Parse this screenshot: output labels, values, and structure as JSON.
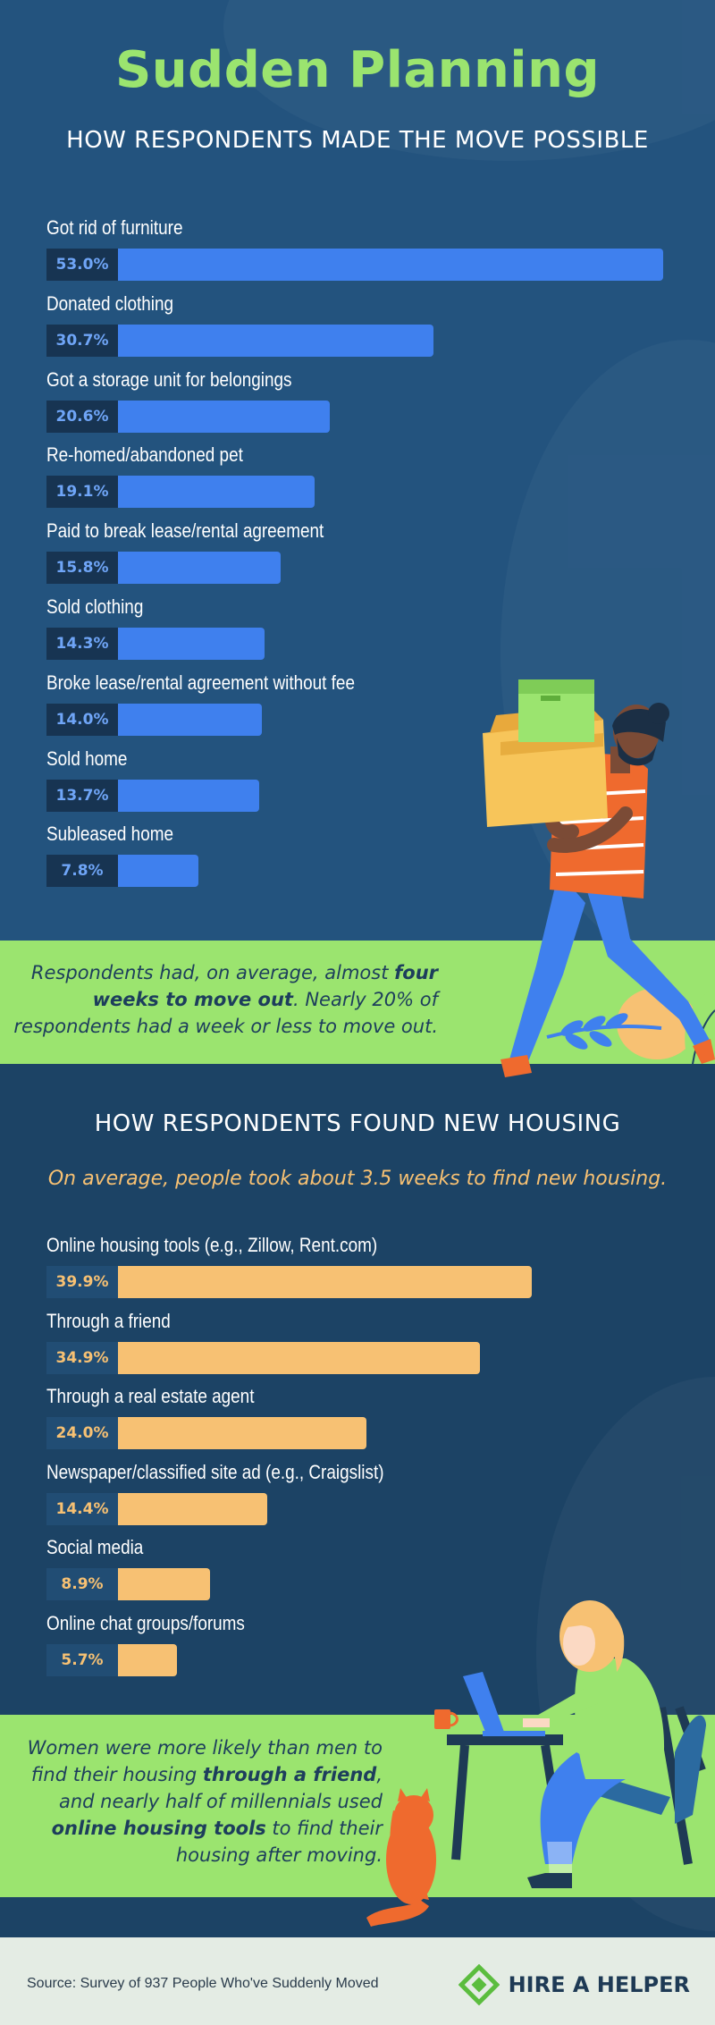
{
  "title": "Sudden Planning",
  "section1": {
    "heading": "HOW RESPONDENTS MADE THE MOVE POSSIBLE",
    "callout": {
      "before": "Respondents had, on average, almost ",
      "bold": "four weeks to move out",
      "after": ". Nearly 20% of respondents had a week or less to move out."
    }
  },
  "section2": {
    "heading": "HOW RESPONDENTS FOUND NEW HOUSING",
    "subheading": "On average, people took about 3.5 weeks to find new housing.",
    "callout": {
      "t1": "Women were more likely than men to find their housing ",
      "b1": "through a friend",
      "t2": ", and nearly half of millennials used ",
      "b2": "online housing tools",
      "t3": " to find their housing after moving."
    }
  },
  "chart_data": [
    {
      "type": "bar",
      "orientation": "horizontal",
      "categories": [
        "Got rid of furniture",
        "Donated clothing",
        "Got a storage unit for belongings",
        "Re-homed/abandoned pet",
        "Paid to break lease/rental agreement",
        "Sold clothing",
        "Broke lease/rental agreement without fee",
        "Sold home",
        "Subleased home"
      ],
      "values": [
        53.0,
        30.7,
        20.6,
        19.1,
        15.8,
        14.3,
        14.0,
        13.7,
        7.8
      ],
      "labels": [
        "53.0%",
        "30.7%",
        "20.6%",
        "19.1%",
        "15.8%",
        "14.3%",
        "14.0%",
        "13.7%",
        "7.8%"
      ],
      "bar_color": "#3f80ee",
      "label_box_color": "#173452",
      "label_color": "#6fa5f7"
    },
    {
      "type": "bar",
      "orientation": "horizontal",
      "categories": [
        "Online housing tools (e.g., Zillow, Rent.com)",
        "Through a friend",
        "Through a real estate agent",
        "Newspaper/classified site ad (e.g., Craigslist)",
        "Social media",
        "Online chat groups/forums"
      ],
      "values": [
        39.9,
        34.9,
        24.0,
        14.4,
        8.9,
        5.7
      ],
      "labels": [
        "39.9%",
        "34.9%",
        "24.0%",
        "14.4%",
        "8.9%",
        "5.7%"
      ],
      "bar_color": "#f7c173",
      "label_box_color": "#214d74",
      "label_color": "#f7c173"
    }
  ],
  "footer": {
    "source": "Source: Survey of 937 People Who've Suddenly Moved",
    "brand": "HIRE A HELPER"
  },
  "colors": {
    "accent_green": "#9be46f",
    "navy": "#23537e",
    "dark_navy": "#1c4365",
    "orange": "#f7c173",
    "blue": "#3f80ee"
  }
}
